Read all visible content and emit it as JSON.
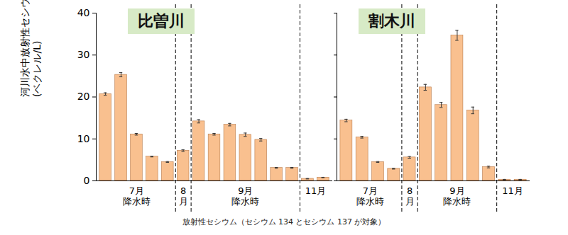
{
  "chart_data": [
    {
      "type": "bar",
      "title": "比曽川",
      "ylabel": "河川水中放射性セシウム濃度\n(ベクレル/L)",
      "values": [
        20.7,
        25.3,
        11.1,
        5.8,
        4.5,
        7.2,
        14.2,
        11.1,
        13.4,
        11.0,
        9.8,
        3.1,
        3.1,
        0.5,
        0.8
      ],
      "errors": [
        0.3,
        0.5,
        0.2,
        0.1,
        0.1,
        0.2,
        0.4,
        0.2,
        0.3,
        0.4,
        0.3,
        0.1,
        0.1,
        0.05,
        0.05
      ],
      "group_labels": [
        "7月\n降水時",
        "8\n月",
        "9月\n降水時",
        "11月"
      ],
      "group_sizes": [
        5,
        1,
        7,
        2
      ],
      "color": "#f9c08f",
      "ylim": [
        0,
        40
      ],
      "yticks": [
        0,
        10,
        20,
        30,
        40
      ],
      "tick_labels": "y"
    },
    {
      "type": "bar",
      "title": "割木川",
      "values": [
        14.4,
        10.4,
        4.5,
        2.9,
        5.6,
        22.3,
        18.1,
        34.7,
        16.8,
        3.3,
        0.3,
        0.3
      ],
      "errors": [
        0.3,
        0.2,
        0.1,
        0.1,
        0.2,
        0.7,
        0.6,
        1.2,
        0.8,
        0.2,
        0.05,
        0.05
      ],
      "group_labels": [
        "7月\n降水時",
        "8\n月",
        "9月\n降水時",
        "11月"
      ],
      "group_sizes": [
        4,
        1,
        5,
        2
      ],
      "color": "#f9c08f",
      "ylim": [
        0,
        40
      ],
      "yticks": [
        0,
        10,
        20,
        30,
        40
      ],
      "tick_labels": false
    }
  ],
  "caption": "放射性セシウム（セシウム 134 とセシウム 137 が対象）"
}
